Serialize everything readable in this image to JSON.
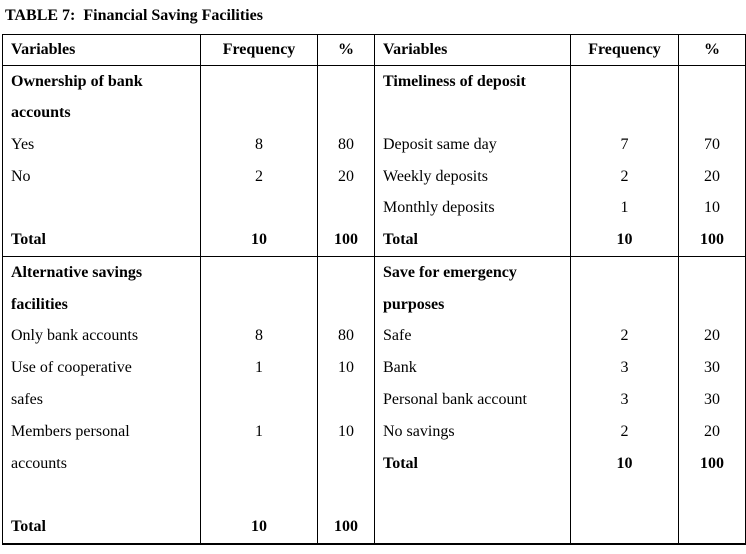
{
  "title": "TABLE 7:  Financial Saving Facilities",
  "columns": {
    "variables": "Variables",
    "frequency": "Frequency",
    "percent": "%"
  },
  "colors": {
    "text": "#000000",
    "background": "#ffffff",
    "border": "#000000"
  },
  "sections": [
    {
      "left": [
        {
          "label": "Ownership of bank"
        },
        {
          "label": "accounts"
        },
        {
          "label": "Yes",
          "freq": "8",
          "pct": "80"
        },
        {
          "label": "No",
          "freq": "2",
          "pct": "20"
        },
        {},
        {
          "label": "Total",
          "freq": "10",
          "pct": "100"
        }
      ],
      "right": [
        {
          "label": "Timeliness of deposit"
        },
        {},
        {
          "label": "Deposit same day",
          "freq": "7",
          "pct": "70"
        },
        {
          "label": "Weekly deposits",
          "freq": "2",
          "pct": "20"
        },
        {
          "label": "Monthly deposits",
          "freq": "1",
          "pct": "10"
        },
        {
          "label": "Total",
          "freq": "10",
          "pct": "100"
        }
      ]
    },
    {
      "left": [
        {
          "label": "Alternative savings"
        },
        {
          "label": "facilities"
        },
        {
          "label": "Only bank accounts",
          "freq": "8",
          "pct": "80"
        },
        {
          "label": "Use of cooperative",
          "freq": "1",
          "pct": "10"
        },
        {
          "label": "safes"
        },
        {
          "label": "Members personal",
          "freq": "1",
          "pct": "10"
        },
        {
          "label": "accounts"
        },
        {},
        {
          "label": "Total",
          "freq": "10",
          "pct": "100"
        }
      ],
      "right": [
        {
          "label": "Save for emergency"
        },
        {
          "label": "purposes"
        },
        {
          "label": "Safe",
          "freq": "2",
          "pct": "20"
        },
        {
          "label": "Bank",
          "freq": "3",
          "pct": "30"
        },
        {
          "label": "Personal bank account",
          "freq": "3",
          "pct": "30"
        },
        {
          "label": "No savings",
          "freq": "2",
          "pct": "20"
        },
        {
          "label": "Total",
          "freq": "10",
          "pct": "100"
        },
        {},
        {}
      ]
    }
  ]
}
